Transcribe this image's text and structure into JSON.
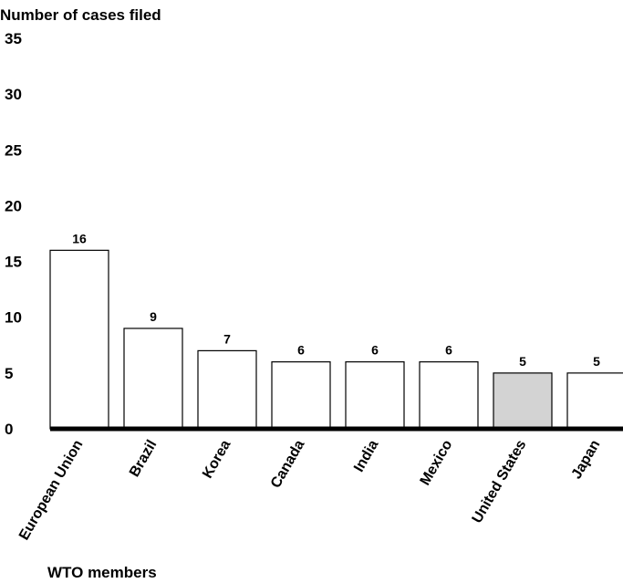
{
  "chart_data": {
    "type": "bar",
    "ylabel": "Number of cases filed",
    "xlabel": "WTO members",
    "ylim": [
      0,
      35
    ],
    "yticks": [
      0,
      5,
      10,
      15,
      20,
      25,
      30,
      35
    ],
    "categories": [
      "European Union",
      "Brazil",
      "Korea",
      "Canada",
      "India",
      "Mexico",
      "United States",
      "Japan"
    ],
    "values": [
      16,
      9,
      7,
      6,
      6,
      6,
      5,
      5
    ],
    "bar_colors": [
      "#ffffff",
      "#ffffff",
      "#ffffff",
      "#ffffff",
      "#ffffff",
      "#ffffff",
      "#d3d3d3",
      "#ffffff"
    ],
    "grid": false,
    "legend": "none"
  }
}
